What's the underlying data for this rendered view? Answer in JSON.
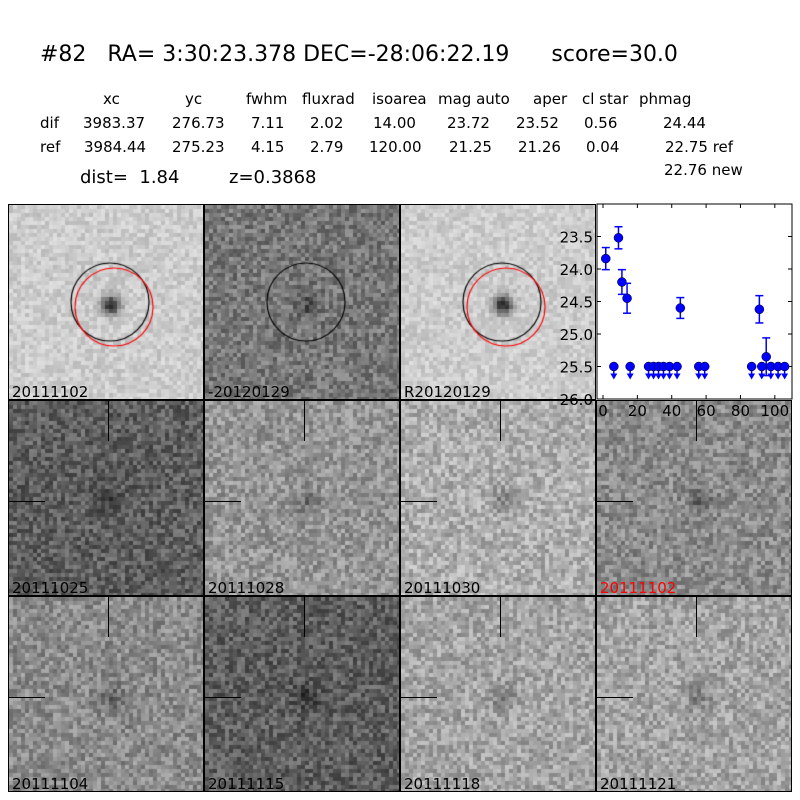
{
  "header": {
    "title": "#82   RA= 3:30:23.378 DEC=-28:06:22.19      score=30.0",
    "columns": [
      "xc",
      "yc",
      "fwhm",
      "fluxrad",
      "isoarea",
      "mag auto",
      "aper",
      "cl star",
      "phmag"
    ],
    "rows": [
      {
        "label": "dif",
        "values": [
          "3983.37",
          "276.73",
          "7.11",
          "2.02",
          "14.00",
          "23.72",
          "23.52",
          "0.56",
          "24.44"
        ]
      },
      {
        "label": "ref",
        "values": [
          "3984.44",
          "275.23",
          "4.15",
          "2.79",
          "120.00",
          "21.25",
          "21.26",
          "0.04",
          "22.75 ref"
        ]
      }
    ],
    "extra_phmag": "22.76 new",
    "dist": "dist=  1.84",
    "z": "z=0.3868"
  },
  "panels": [
    {
      "label": "20111102",
      "tone": 205,
      "circles": [
        "black",
        "red"
      ]
    },
    {
      "label": "-20120129",
      "tone": 120,
      "circles": [
        "black"
      ]
    },
    {
      "label": "R20120129",
      "tone": 205,
      "circles": [
        "black",
        "red"
      ]
    },
    {
      "label": "20111025",
      "tone": 95,
      "crosshair": true
    },
    {
      "label": "20111028",
      "tone": 150,
      "crosshair": true
    },
    {
      "label": "20111030",
      "tone": 175,
      "crosshair": true
    },
    {
      "label": "20111102",
      "tone": 140,
      "crosshair": true,
      "label_color": "#ff0000"
    },
    {
      "label": "20111104",
      "tone": 140,
      "crosshair": true
    },
    {
      "label": "20111115",
      "tone": 95,
      "crosshair": true
    },
    {
      "label": "20111118",
      "tone": 165,
      "crosshair": true
    },
    {
      "label": "20111121",
      "tone": 165,
      "crosshair": true
    }
  ],
  "chart_data": {
    "type": "scatter",
    "xlim": [
      -3.5,
      110
    ],
    "ylim": [
      26.0,
      23.0
    ],
    "y_inverted": true,
    "xticks": [
      "0",
      "20",
      "40",
      "60",
      "80",
      "100"
    ],
    "yticks": [
      "23.5",
      "24.0",
      "24.5",
      "25.0",
      "25.5",
      "26.0"
    ],
    "color": "#0000ff",
    "detections": [
      {
        "x": 1.6,
        "y": 23.84,
        "err": 0.17
      },
      {
        "x": 9,
        "y": 23.52,
        "err": 0.17
      },
      {
        "x": 11,
        "y": 24.2,
        "err": 0.19
      },
      {
        "x": 14,
        "y": 24.45,
        "err": 0.23
      },
      {
        "x": 45,
        "y": 24.6,
        "err": 0.16
      },
      {
        "x": 91,
        "y": 24.62,
        "err": 0.21
      },
      {
        "x": 95,
        "y": 25.35,
        "err": 0.29
      }
    ],
    "upper_limits": {
      "y": 25.5,
      "x": [
        6.3,
        15.8,
        26.5,
        29.4,
        32.3,
        35.2,
        38.7,
        43.1,
        55.7,
        59.2,
        86.5,
        92.4,
        97.7,
        101.9,
        105.7
      ]
    }
  }
}
